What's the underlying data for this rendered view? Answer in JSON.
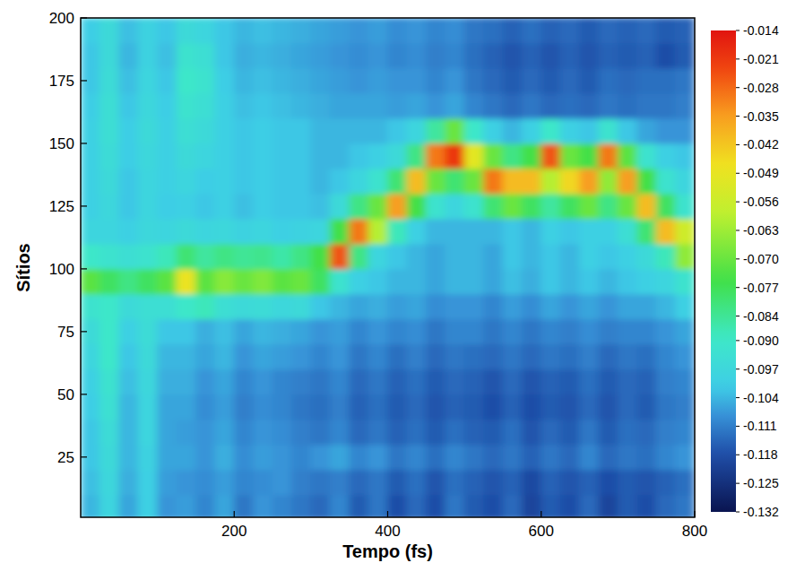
{
  "chart_data": {
    "type": "heatmap",
    "x_label": "Tempo (fs)",
    "y_label": "Sítios",
    "xlim": [
      0,
      800
    ],
    "xticks": [
      200,
      400,
      600,
      800
    ],
    "ylim": [
      1,
      200
    ],
    "yticks": [
      25,
      50,
      75,
      100,
      125,
      150,
      175,
      200
    ],
    "x": [
      12.5,
      37.5,
      62.5,
      87.5,
      112.5,
      137.5,
      162.5,
      187.5,
      212.5,
      237.5,
      262.5,
      287.5,
      312.5,
      337.5,
      362.5,
      387.5,
      412.5,
      437.5,
      462.5,
      487.5,
      512.5,
      537.5,
      562.5,
      587.5,
      612.5,
      637.5,
      662.5,
      687.5,
      712.5,
      737.5,
      762.5,
      787.5
    ],
    "y": [
      5,
      15,
      25,
      35,
      45,
      55,
      65,
      75,
      85,
      95,
      105,
      115,
      125,
      135,
      145,
      155,
      165,
      175,
      185,
      195
    ],
    "values": [
      [
        -0.104,
        -0.098,
        -0.106,
        -0.1,
        -0.108,
        -0.107,
        -0.11,
        -0.106,
        -0.112,
        -0.108,
        -0.11,
        -0.112,
        -0.114,
        -0.11,
        -0.116,
        -0.112,
        -0.118,
        -0.114,
        -0.118,
        -0.112,
        -0.116,
        -0.118,
        -0.114,
        -0.12,
        -0.116,
        -0.118,
        -0.114,
        -0.12,
        -0.116,
        -0.118,
        -0.114,
        -0.112
      ],
      [
        -0.103,
        -0.097,
        -0.105,
        -0.1,
        -0.107,
        -0.108,
        -0.109,
        -0.107,
        -0.11,
        -0.109,
        -0.108,
        -0.111,
        -0.112,
        -0.111,
        -0.114,
        -0.112,
        -0.116,
        -0.113,
        -0.117,
        -0.113,
        -0.115,
        -0.117,
        -0.115,
        -0.119,
        -0.115,
        -0.117,
        -0.115,
        -0.118,
        -0.116,
        -0.117,
        -0.115,
        -0.113
      ],
      [
        -0.102,
        -0.096,
        -0.104,
        -0.099,
        -0.106,
        -0.106,
        -0.108,
        -0.105,
        -0.109,
        -0.107,
        -0.108,
        -0.11,
        -0.108,
        -0.106,
        -0.11,
        -0.108,
        -0.112,
        -0.11,
        -0.113,
        -0.11,
        -0.112,
        -0.114,
        -0.112,
        -0.115,
        -0.112,
        -0.114,
        -0.11,
        -0.114,
        -0.112,
        -0.113,
        -0.11,
        -0.108
      ],
      [
        -0.102,
        -0.095,
        -0.104,
        -0.098,
        -0.106,
        -0.107,
        -0.108,
        -0.106,
        -0.11,
        -0.108,
        -0.109,
        -0.111,
        -0.112,
        -0.11,
        -0.114,
        -0.112,
        -0.115,
        -0.113,
        -0.116,
        -0.113,
        -0.115,
        -0.116,
        -0.113,
        -0.117,
        -0.114,
        -0.116,
        -0.112,
        -0.116,
        -0.113,
        -0.114,
        -0.111,
        -0.11
      ],
      [
        -0.101,
        -0.093,
        -0.104,
        -0.098,
        -0.106,
        -0.106,
        -0.109,
        -0.107,
        -0.111,
        -0.109,
        -0.11,
        -0.112,
        -0.113,
        -0.111,
        -0.115,
        -0.113,
        -0.116,
        -0.114,
        -0.117,
        -0.115,
        -0.116,
        -0.118,
        -0.115,
        -0.118,
        -0.116,
        -0.117,
        -0.114,
        -0.117,
        -0.114,
        -0.116,
        -0.112,
        -0.111
      ],
      [
        -0.1,
        -0.092,
        -0.103,
        -0.097,
        -0.105,
        -0.105,
        -0.108,
        -0.106,
        -0.11,
        -0.108,
        -0.11,
        -0.111,
        -0.112,
        -0.11,
        -0.114,
        -0.112,
        -0.115,
        -0.113,
        -0.116,
        -0.114,
        -0.115,
        -0.117,
        -0.114,
        -0.117,
        -0.115,
        -0.116,
        -0.113,
        -0.116,
        -0.114,
        -0.115,
        -0.111,
        -0.11
      ],
      [
        -0.098,
        -0.09,
        -0.102,
        -0.096,
        -0.104,
        -0.104,
        -0.106,
        -0.104,
        -0.108,
        -0.106,
        -0.107,
        -0.108,
        -0.11,
        -0.108,
        -0.112,
        -0.11,
        -0.113,
        -0.111,
        -0.114,
        -0.112,
        -0.113,
        -0.114,
        -0.112,
        -0.114,
        -0.112,
        -0.113,
        -0.111,
        -0.114,
        -0.112,
        -0.113,
        -0.11,
        -0.108
      ],
      [
        -0.096,
        -0.09,
        -0.1,
        -0.095,
        -0.102,
        -0.102,
        -0.105,
        -0.103,
        -0.106,
        -0.104,
        -0.105,
        -0.106,
        -0.108,
        -0.107,
        -0.11,
        -0.108,
        -0.11,
        -0.109,
        -0.112,
        -0.11,
        -0.11,
        -0.112,
        -0.11,
        -0.112,
        -0.11,
        -0.111,
        -0.109,
        -0.111,
        -0.11,
        -0.11,
        -0.108,
        -0.106
      ],
      [
        -0.092,
        -0.09,
        -0.096,
        -0.094,
        -0.094,
        -0.09,
        -0.088,
        -0.094,
        -0.096,
        -0.095,
        -0.097,
        -0.096,
        -0.102,
        -0.104,
        -0.106,
        -0.105,
        -0.107,
        -0.106,
        -0.109,
        -0.108,
        -0.108,
        -0.11,
        -0.107,
        -0.109,
        -0.106,
        -0.108,
        -0.106,
        -0.108,
        -0.106,
        -0.106,
        -0.104,
        -0.1
      ],
      [
        -0.072,
        -0.078,
        -0.082,
        -0.078,
        -0.072,
        -0.048,
        -0.072,
        -0.066,
        -0.07,
        -0.067,
        -0.072,
        -0.07,
        -0.078,
        -0.092,
        -0.1,
        -0.102,
        -0.104,
        -0.104,
        -0.106,
        -0.104,
        -0.104,
        -0.106,
        -0.103,
        -0.105,
        -0.102,
        -0.104,
        -0.102,
        -0.104,
        -0.102,
        -0.1,
        -0.098,
        -0.092
      ],
      [
        -0.09,
        -0.092,
        -0.094,
        -0.092,
        -0.088,
        -0.08,
        -0.085,
        -0.082,
        -0.084,
        -0.083,
        -0.086,
        -0.082,
        -0.075,
        -0.025,
        -0.082,
        -0.098,
        -0.102,
        -0.104,
        -0.106,
        -0.104,
        -0.104,
        -0.106,
        -0.102,
        -0.104,
        -0.102,
        -0.104,
        -0.1,
        -0.102,
        -0.1,
        -0.096,
        -0.088,
        -0.065
      ],
      [
        -0.098,
        -0.098,
        -0.1,
        -0.097,
        -0.098,
        -0.096,
        -0.098,
        -0.097,
        -0.099,
        -0.098,
        -0.1,
        -0.099,
        -0.098,
        -0.075,
        -0.03,
        -0.06,
        -0.088,
        -0.1,
        -0.104,
        -0.104,
        -0.104,
        -0.104,
        -0.102,
        -0.104,
        -0.1,
        -0.102,
        -0.1,
        -0.1,
        -0.094,
        -0.08,
        -0.04,
        -0.055
      ],
      [
        -0.1,
        -0.097,
        -0.102,
        -0.098,
        -0.101,
        -0.1,
        -0.102,
        -0.1,
        -0.103,
        -0.101,
        -0.102,
        -0.102,
        -0.103,
        -0.096,
        -0.082,
        -0.07,
        -0.035,
        -0.075,
        -0.092,
        -0.098,
        -0.092,
        -0.08,
        -0.07,
        -0.078,
        -0.085,
        -0.078,
        -0.07,
        -0.082,
        -0.07,
        -0.04,
        -0.078,
        -0.092
      ],
      [
        -0.1,
        -0.096,
        -0.102,
        -0.098,
        -0.1,
        -0.098,
        -0.101,
        -0.1,
        -0.102,
        -0.101,
        -0.102,
        -0.102,
        -0.104,
        -0.102,
        -0.098,
        -0.092,
        -0.08,
        -0.04,
        -0.07,
        -0.08,
        -0.07,
        -0.03,
        -0.04,
        -0.04,
        -0.06,
        -0.045,
        -0.035,
        -0.065,
        -0.035,
        -0.075,
        -0.092,
        -0.098
      ],
      [
        -0.1,
        -0.095,
        -0.101,
        -0.097,
        -0.1,
        -0.096,
        -0.098,
        -0.1,
        -0.102,
        -0.101,
        -0.102,
        -0.102,
        -0.104,
        -0.104,
        -0.102,
        -0.1,
        -0.096,
        -0.082,
        -0.03,
        -0.02,
        -0.05,
        -0.07,
        -0.082,
        -0.075,
        -0.025,
        -0.07,
        -0.075,
        -0.03,
        -0.072,
        -0.092,
        -0.1,
        -0.102
      ],
      [
        -0.1,
        -0.094,
        -0.101,
        -0.096,
        -0.1,
        -0.094,
        -0.096,
        -0.1,
        -0.102,
        -0.101,
        -0.102,
        -0.102,
        -0.104,
        -0.104,
        -0.104,
        -0.104,
        -0.102,
        -0.098,
        -0.085,
        -0.07,
        -0.09,
        -0.1,
        -0.104,
        -0.1,
        -0.09,
        -0.1,
        -0.102,
        -0.092,
        -0.102,
        -0.106,
        -0.108,
        -0.108
      ],
      [
        -0.101,
        -0.094,
        -0.102,
        -0.097,
        -0.101,
        -0.092,
        -0.094,
        -0.1,
        -0.103,
        -0.102,
        -0.103,
        -0.104,
        -0.105,
        -0.106,
        -0.106,
        -0.106,
        -0.107,
        -0.106,
        -0.108,
        -0.106,
        -0.11,
        -0.112,
        -0.114,
        -0.112,
        -0.114,
        -0.113,
        -0.114,
        -0.112,
        -0.113,
        -0.112,
        -0.112,
        -0.111
      ],
      [
        -0.102,
        -0.095,
        -0.103,
        -0.098,
        -0.102,
        -0.09,
        -0.092,
        -0.101,
        -0.104,
        -0.103,
        -0.104,
        -0.105,
        -0.106,
        -0.107,
        -0.108,
        -0.107,
        -0.108,
        -0.108,
        -0.11,
        -0.108,
        -0.112,
        -0.114,
        -0.116,
        -0.114,
        -0.116,
        -0.114,
        -0.116,
        -0.113,
        -0.114,
        -0.113,
        -0.113,
        -0.112
      ],
      [
        -0.102,
        -0.096,
        -0.104,
        -0.099,
        -0.103,
        -0.092,
        -0.094,
        -0.102,
        -0.105,
        -0.104,
        -0.105,
        -0.106,
        -0.107,
        -0.108,
        -0.109,
        -0.108,
        -0.11,
        -0.109,
        -0.111,
        -0.11,
        -0.113,
        -0.115,
        -0.117,
        -0.115,
        -0.117,
        -0.115,
        -0.117,
        -0.115,
        -0.116,
        -0.115,
        -0.118,
        -0.116
      ],
      [
        -0.101,
        -0.096,
        -0.103,
        -0.099,
        -0.102,
        -0.096,
        -0.098,
        -0.102,
        -0.104,
        -0.103,
        -0.104,
        -0.105,
        -0.106,
        -0.107,
        -0.108,
        -0.107,
        -0.109,
        -0.108,
        -0.11,
        -0.109,
        -0.112,
        -0.113,
        -0.115,
        -0.113,
        -0.115,
        -0.114,
        -0.116,
        -0.114,
        -0.115,
        -0.114,
        -0.116,
        -0.115
      ]
    ],
    "colorbar_range": [
      -0.132,
      -0.014
    ],
    "colorbar_ticks": [
      -0.014,
      -0.021,
      -0.028,
      -0.035,
      -0.042,
      -0.049,
      -0.056,
      -0.063,
      {
        "value": -0.07,
        "label": "-0.070"
      },
      -0.077,
      -0.084,
      {
        "value": -0.09,
        "label": "-0.090"
      },
      -0.097,
      -0.104,
      -0.111,
      -0.118,
      -0.125,
      -0.132
    ]
  }
}
